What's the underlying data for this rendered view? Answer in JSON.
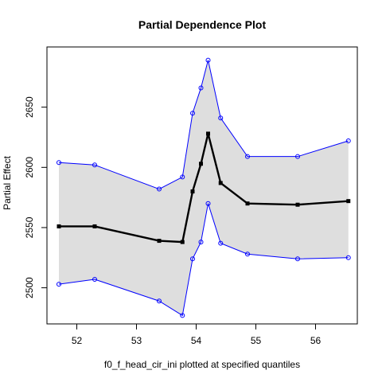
{
  "chart_data": {
    "type": "line",
    "title": "Partial Dependence Plot",
    "xlabel": "f0_f_head_cir_ini plotted at specified quantiles",
    "ylabel": "Partial Effect",
    "xlim": [
      51.5,
      56.7
    ],
    "ylim": [
      2470,
      2700
    ],
    "xticks": [
      52,
      53,
      54,
      55,
      56
    ],
    "yticks": [
      2500,
      2550,
      2600,
      2650
    ],
    "grid": false,
    "legend": "none",
    "colors": {
      "band_fill": "#dedede",
      "bound_line": "#0000ff",
      "effect_line": "#000000"
    },
    "x": [
      51.7,
      52.3,
      53.38,
      53.77,
      53.94,
      54.08,
      54.2,
      54.41,
      54.86,
      55.7,
      56.55
    ],
    "series": [
      {
        "role": "estimate",
        "values": [
          2551,
          2551,
          2539,
          2538,
          2580,
          2603,
          2628,
          2587,
          2570,
          2569,
          2572
        ]
      },
      {
        "role": "upper",
        "values": [
          2604,
          2602,
          2582,
          2592,
          2645,
          2666,
          2689,
          2641,
          2609,
          2609,
          2622
        ]
      },
      {
        "role": "lower",
        "values": [
          2503,
          2507,
          2489,
          2477,
          2524,
          2538,
          2570,
          2537,
          2528,
          2524,
          2525
        ]
      }
    ]
  }
}
